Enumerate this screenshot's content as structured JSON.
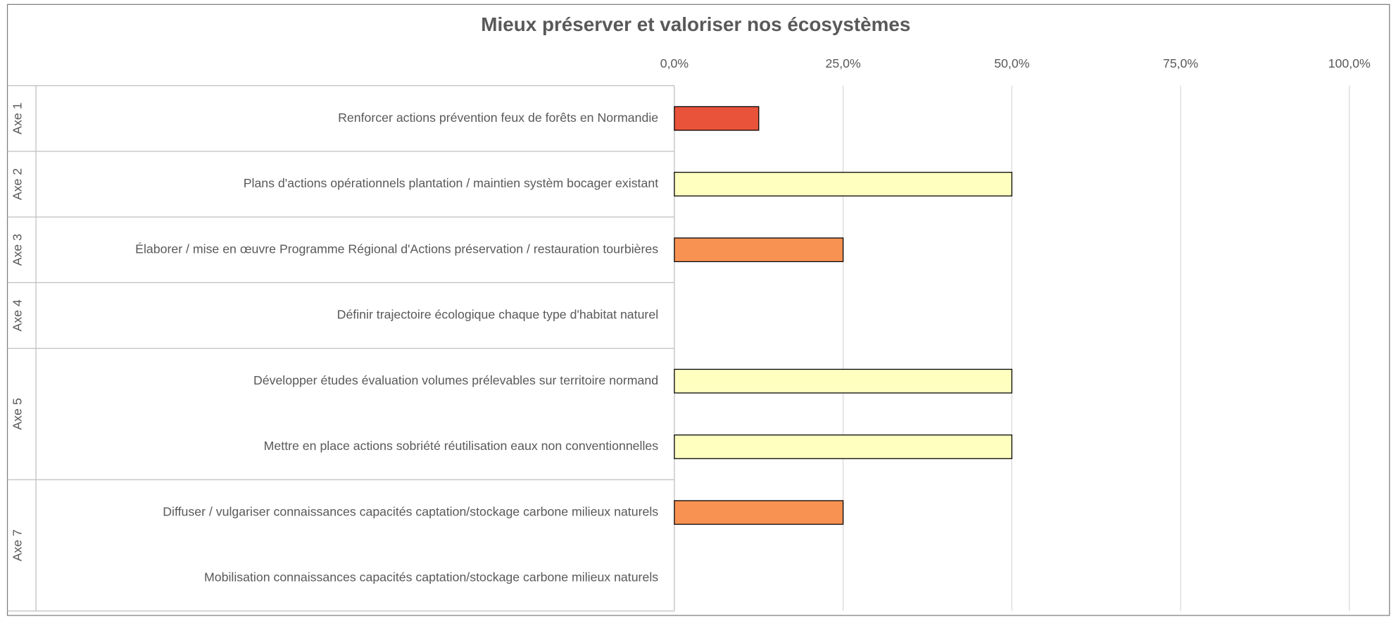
{
  "chart_data": {
    "type": "bar",
    "orientation": "horizontal",
    "title": "Mieux préserver et valoriser nos écosystèmes",
    "groups": [
      {
        "label": "Axe 1",
        "categories": [
          "Renforcer actions prévention feux de forêts en Normandie"
        ],
        "values": [
          12.5
        ],
        "colors": [
          "#e8533a"
        ]
      },
      {
        "label": "Axe 2",
        "categories": [
          "Plans d'actions opérationnels plantation / maintien systèm bocager existant"
        ],
        "values": [
          50
        ],
        "colors": [
          "#ffffc0"
        ]
      },
      {
        "label": "Axe 3",
        "categories": [
          "Élaborer / mise en œuvre Programme Régional d'Actions préservation / restauration tourbières"
        ],
        "values": [
          25
        ],
        "colors": [
          "#f79253"
        ]
      },
      {
        "label": "Axe 4",
        "categories": [
          "Définir trajectoire écologique chaque type d'habitat naturel"
        ],
        "values": [
          0
        ],
        "colors": [
          "#ffffc0"
        ]
      },
      {
        "label": "Axe 5",
        "categories": [
          "Développer études évaluation volumes prélevables sur territoire normand",
          "Mettre en place actions sobriété réutilisation eaux non conventionnelles"
        ],
        "values": [
          50,
          50
        ],
        "colors": [
          "#ffffc0",
          "#ffffc0"
        ]
      },
      {
        "label": "Axe 7",
        "categories": [
          "Diffuser / vulgariser connaissances capacités captation/stockage carbone milieux naturels",
          "Mobilisation connaissances capacités captation/stockage carbone milieux naturels"
        ],
        "values": [
          25,
          0
        ],
        "colors": [
          "#f79253",
          "#f79253"
        ]
      }
    ],
    "xlim": [
      0,
      100
    ],
    "xticks": [
      {
        "value": 0,
        "label": "0,0%"
      },
      {
        "value": 25,
        "label": "25,0%"
      },
      {
        "value": 50,
        "label": "50,0%"
      },
      {
        "value": 75,
        "label": "75,0%"
      },
      {
        "value": 100,
        "label": "100,0%"
      }
    ],
    "grid": true
  }
}
